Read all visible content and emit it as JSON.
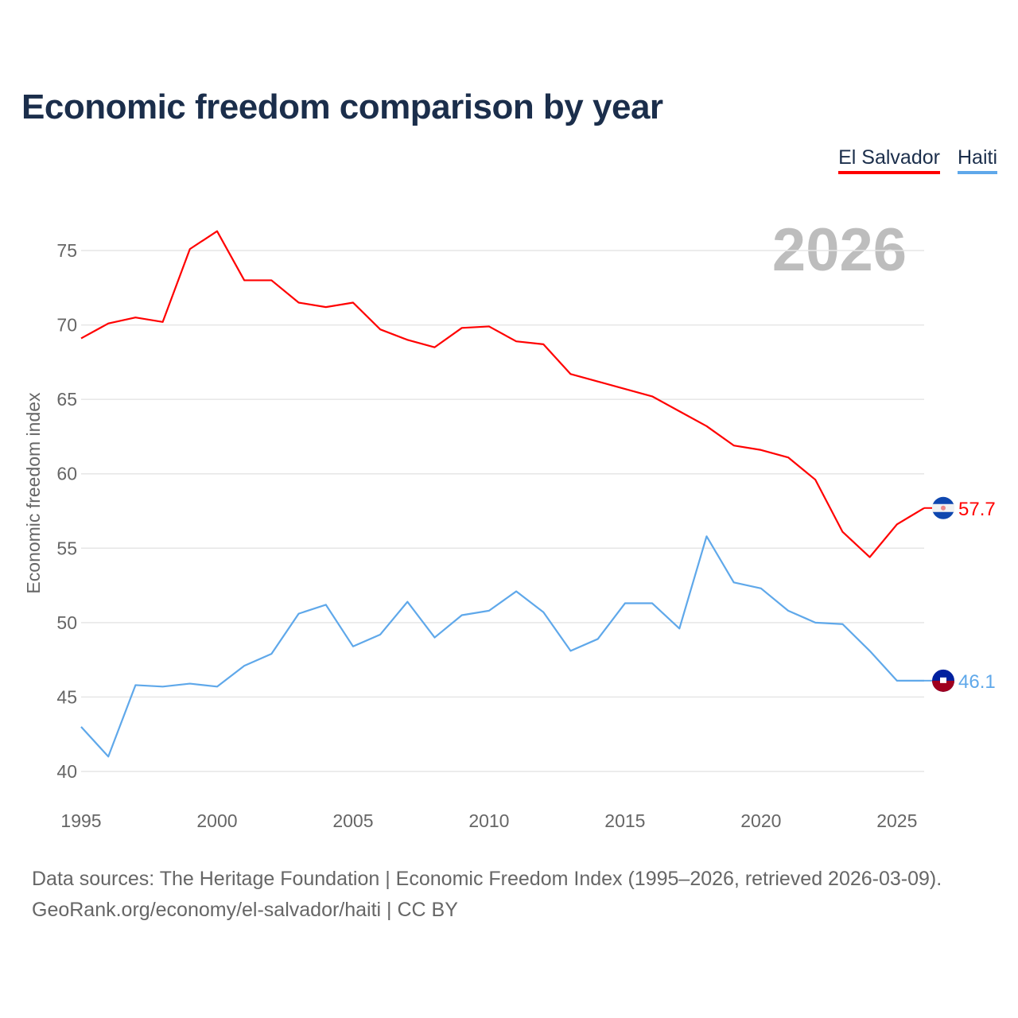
{
  "title": "Economic freedom comparison by year",
  "footer": {
    "line1": "Data sources: The Heritage Foundation | Economic Freedom Index (1995–2026, retrieved 2026-03-09).",
    "line2": "GeoRank.org/economy/el-salvador/haiti | CC BY"
  },
  "chart_data": {
    "type": "line",
    "title": "Economic freedom comparison by year",
    "ylabel": "Economic freedom index",
    "xlabel": "",
    "year_watermark": "2026",
    "ylim": [
      40,
      77
    ],
    "xlim": [
      1995,
      2026
    ],
    "yticks": [
      "40",
      "45",
      "50",
      "55",
      "60",
      "65",
      "70",
      "75"
    ],
    "xticks": [
      "1995",
      "2000",
      "2005",
      "2010",
      "2015",
      "2020",
      "2025"
    ],
    "grid": true,
    "legend_position": "top-right",
    "x": [
      1995,
      1996,
      1997,
      1998,
      1999,
      2000,
      2001,
      2002,
      2003,
      2004,
      2005,
      2006,
      2007,
      2008,
      2009,
      2010,
      2011,
      2012,
      2013,
      2014,
      2015,
      2016,
      2017,
      2018,
      2019,
      2020,
      2021,
      2022,
      2023,
      2024,
      2025,
      2026
    ],
    "series": [
      {
        "name": "El Salvador",
        "color": "#ff0000",
        "end_label": "57.7",
        "values": [
          69.1,
          70.1,
          70.5,
          70.2,
          75.1,
          76.3,
          73.0,
          73.0,
          71.5,
          71.2,
          71.5,
          69.7,
          69.0,
          68.5,
          69.8,
          69.9,
          68.9,
          68.7,
          66.7,
          66.2,
          65.7,
          65.2,
          64.2,
          63.2,
          61.9,
          61.6,
          61.1,
          59.6,
          56.1,
          54.4,
          56.6,
          57.7
        ]
      },
      {
        "name": "Haiti",
        "color": "#5fa8ea",
        "end_label": "46.1",
        "values": [
          43.0,
          41.0,
          45.8,
          45.7,
          45.9,
          45.7,
          47.1,
          47.9,
          50.6,
          51.2,
          48.4,
          49.2,
          51.4,
          49.0,
          50.5,
          50.8,
          52.1,
          50.7,
          48.1,
          48.9,
          51.3,
          51.3,
          49.6,
          55.8,
          52.7,
          52.3,
          50.8,
          50.0,
          49.9,
          48.1,
          46.1,
          46.1
        ]
      }
    ]
  }
}
